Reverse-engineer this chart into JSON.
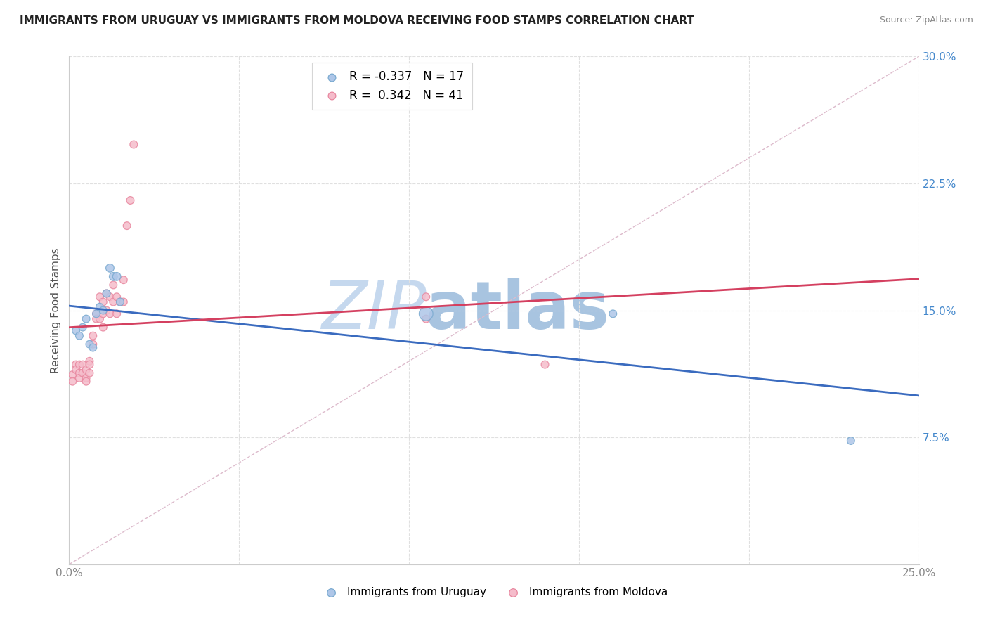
{
  "title": "IMMIGRANTS FROM URUGUAY VS IMMIGRANTS FROM MOLDOVA RECEIVING FOOD STAMPS CORRELATION CHART",
  "source": "Source: ZipAtlas.com",
  "ylabel": "Receiving Food Stamps",
  "xlim": [
    0.0,
    0.25
  ],
  "ylim": [
    0.0,
    0.3
  ],
  "xticks": [
    0.0,
    0.05,
    0.1,
    0.15,
    0.2,
    0.25
  ],
  "yticks": [
    0.075,
    0.15,
    0.225,
    0.3
  ],
  "xticklabels": [
    "0.0%",
    "",
    "",
    "",
    "",
    "25.0%"
  ],
  "yticklabels": [
    "7.5%",
    "15.0%",
    "22.5%",
    "30.0%"
  ],
  "background_color": "#ffffff",
  "grid_color": "#e0e0e0",
  "uruguay_color": "#aec6e8",
  "uruguay_edge_color": "#7aaad0",
  "moldova_color": "#f5bccb",
  "moldova_edge_color": "#e8879f",
  "uruguay_line_color": "#3a6bbf",
  "moldova_line_color": "#d44060",
  "legend_r_uruguay": "-0.337",
  "legend_n_uruguay": "17",
  "legend_r_moldova": "0.342",
  "legend_n_moldova": "41",
  "uruguay_x": [
    0.002,
    0.003,
    0.004,
    0.005,
    0.006,
    0.007,
    0.008,
    0.009,
    0.01,
    0.011,
    0.012,
    0.013,
    0.014,
    0.015,
    0.105,
    0.16,
    0.23
  ],
  "uruguay_y": [
    0.138,
    0.135,
    0.14,
    0.145,
    0.13,
    0.128,
    0.148,
    0.152,
    0.15,
    0.16,
    0.175,
    0.17,
    0.17,
    0.155,
    0.148,
    0.148,
    0.073
  ],
  "uruguay_size": [
    60,
    60,
    60,
    60,
    60,
    60,
    60,
    60,
    60,
    60,
    70,
    70,
    70,
    60,
    200,
    60,
    60
  ],
  "moldova_x": [
    0.001,
    0.001,
    0.002,
    0.002,
    0.003,
    0.003,
    0.003,
    0.004,
    0.004,
    0.005,
    0.005,
    0.005,
    0.006,
    0.006,
    0.006,
    0.007,
    0.007,
    0.008,
    0.008,
    0.009,
    0.009,
    0.01,
    0.01,
    0.01,
    0.011,
    0.011,
    0.012,
    0.012,
    0.013,
    0.013,
    0.014,
    0.014,
    0.015,
    0.016,
    0.016,
    0.017,
    0.018,
    0.019,
    0.105,
    0.105,
    0.14
  ],
  "moldova_y": [
    0.112,
    0.108,
    0.118,
    0.115,
    0.118,
    0.113,
    0.11,
    0.118,
    0.113,
    0.115,
    0.11,
    0.108,
    0.12,
    0.118,
    0.113,
    0.135,
    0.13,
    0.148,
    0.145,
    0.158,
    0.145,
    0.155,
    0.148,
    0.14,
    0.16,
    0.15,
    0.158,
    0.148,
    0.165,
    0.155,
    0.158,
    0.148,
    0.155,
    0.168,
    0.155,
    0.2,
    0.215,
    0.248,
    0.158,
    0.145,
    0.118
  ],
  "moldova_size": [
    60,
    60,
    60,
    60,
    60,
    60,
    60,
    60,
    60,
    60,
    60,
    60,
    60,
    60,
    60,
    60,
    60,
    60,
    60,
    60,
    60,
    60,
    60,
    60,
    60,
    60,
    60,
    60,
    60,
    60,
    60,
    60,
    60,
    60,
    60,
    60,
    60,
    60,
    60,
    60,
    60
  ],
  "watermark_zip": "ZIP",
  "watermark_atlas": "atlas",
  "watermark_color_zip": "#c5d8ee",
  "watermark_color_atlas": "#a8c4e0",
  "figsize": [
    14.06,
    8.92
  ],
  "dpi": 100
}
